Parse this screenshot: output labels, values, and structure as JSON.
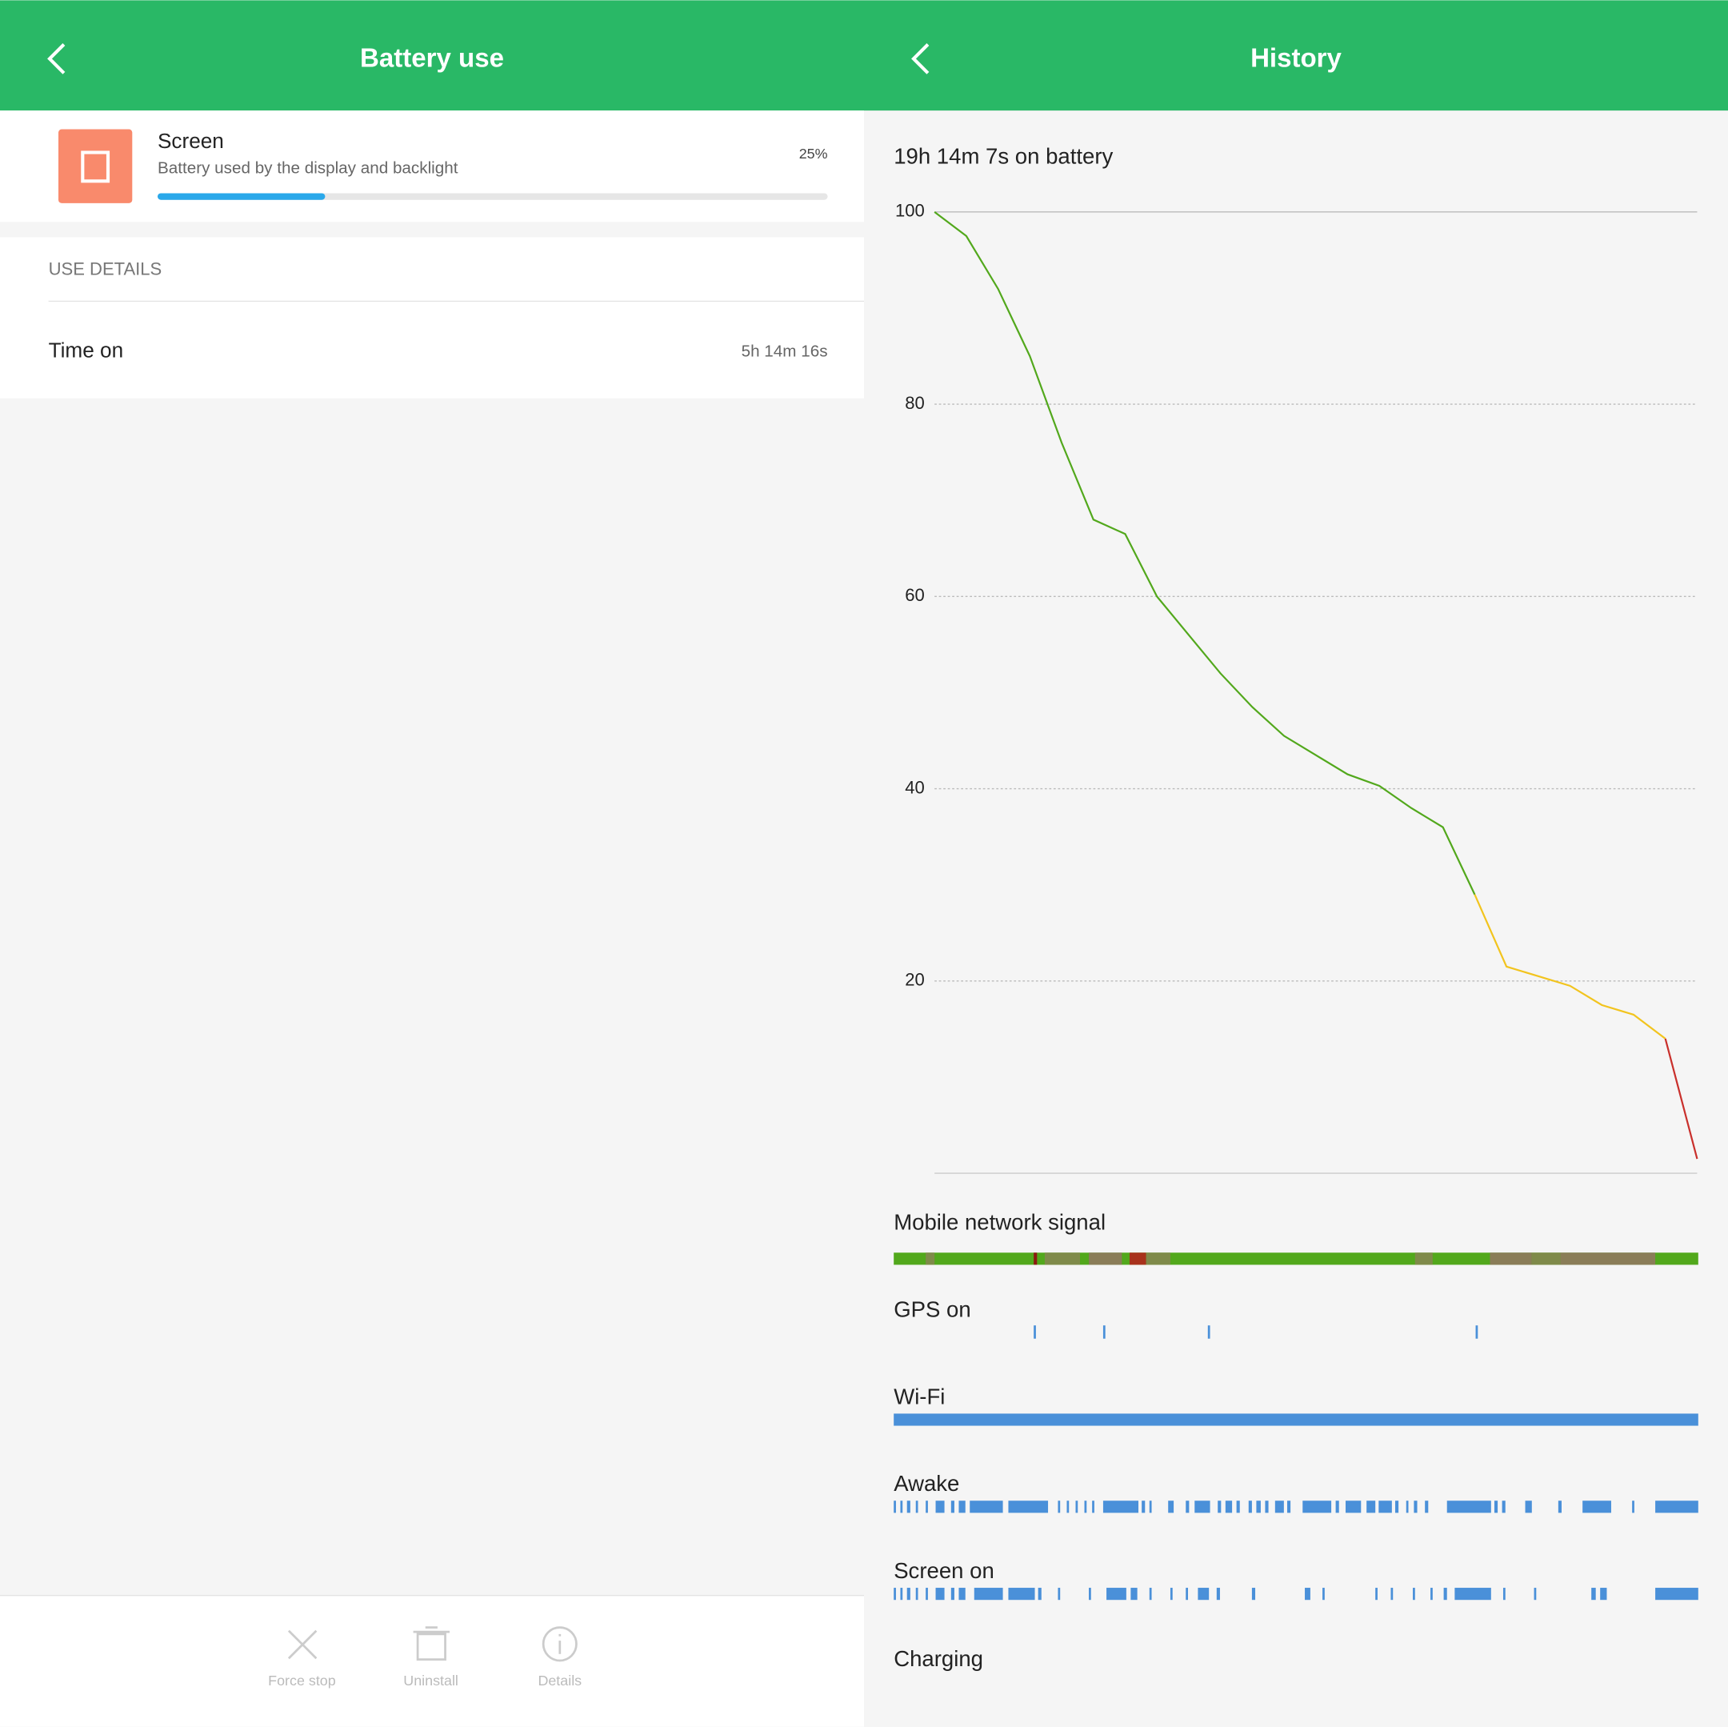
{
  "left": {
    "title": "Battery use",
    "item": {
      "name": "Screen",
      "description": "Battery used by the display and backlight",
      "percent": {
        "value": 25,
        "label": "25%"
      }
    },
    "section": "USE DETAILS",
    "rows": [
      {
        "label": "Time on",
        "value": "5h 14m 16s"
      }
    ],
    "actions": [
      "Force stop",
      "Uninstall",
      "Details"
    ]
  },
  "right": {
    "title": "History",
    "summary": "19h 14m 7s on battery",
    "chart_data": {
      "type": "line",
      "series": [
        {
          "name": "battery-high",
          "color": "#52a81c",
          "x": [
            0,
            1,
            2,
            3,
            4,
            5,
            6,
            7,
            8,
            9,
            10,
            11,
            12,
            13,
            14,
            15,
            16,
            17
          ],
          "values": [
            100,
            97.5,
            92,
            85,
            76,
            68,
            66.5,
            60,
            56,
            52,
            48.5,
            45.5,
            43.5,
            41.5,
            40.3,
            38,
            36,
            29
          ]
        },
        {
          "name": "battery-medium",
          "color": "#f2c41e",
          "x": [
            17,
            18,
            19,
            20,
            21,
            22,
            23
          ],
          "values": [
            29,
            21.5,
            20.5,
            19.5,
            17.5,
            16.5,
            14
          ]
        },
        {
          "name": "battery-low",
          "color": "#c9302c",
          "x": [
            23,
            24
          ],
          "values": [
            14,
            1.5
          ]
        }
      ],
      "xlim": [
        0,
        24
      ],
      "ylim": [
        0,
        100
      ],
      "yticks": [
        20,
        40,
        60,
        80,
        100
      ],
      "grid": true
    },
    "tracks": [
      "Mobile network signal",
      "GPS on",
      "Wi-Fi",
      "Awake",
      "Screen on",
      "Charging"
    ]
  }
}
